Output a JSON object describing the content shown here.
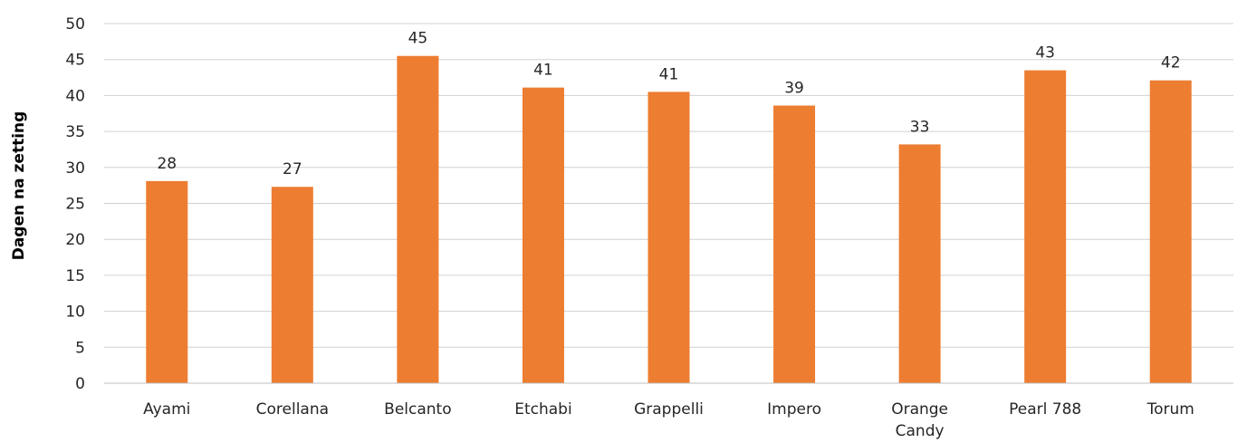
{
  "chart_data": {
    "type": "bar",
    "title": "",
    "xlabel": "",
    "ylabel": "Dagen na zetting",
    "categories": [
      "Ayami",
      "Corellana",
      "Belcanto",
      "Etchabi",
      "Grappelli",
      "Impero",
      "Orange Candy",
      "Pearl 788",
      "Torum"
    ],
    "values": [
      28.1,
      27.3,
      45.5,
      41.1,
      40.5,
      38.6,
      33.2,
      43.5,
      42.1
    ],
    "data_labels": [
      "28",
      "27",
      "45",
      "41",
      "41",
      "39",
      "33",
      "43",
      "42"
    ],
    "ylim": [
      0,
      50
    ],
    "yticks": [
      0,
      5,
      10,
      15,
      20,
      25,
      30,
      35,
      40,
      45,
      50
    ],
    "grid": true,
    "legend": "none",
    "bar_color": "#ED7D31"
  }
}
